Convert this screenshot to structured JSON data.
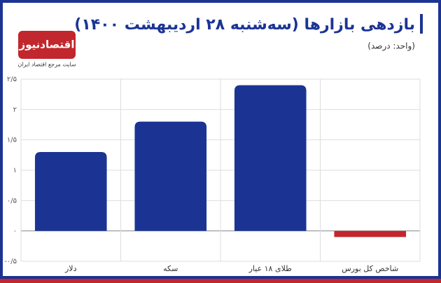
{
  "logo": {
    "name": "اقتصادنیوز",
    "tagline": "سایت مرجع اقتصاد ایران"
  },
  "chart_data": {
    "type": "bar",
    "title": "بازدهی بازارها (سه‌شنبه ۲۸ اردیبهشت ۱۴۰۰)",
    "subtitle": "(واحد: درصد)",
    "categories": [
      "دلار",
      "سکه",
      "طلای ۱۸ عیار",
      "شاخص کل بورس"
    ],
    "values": [
      1.3,
      1.8,
      2.4,
      -0.1
    ],
    "colors": [
      "#1b3494",
      "#1b3494",
      "#1b3494",
      "#c1272d"
    ],
    "ylim": [
      -0.5,
      2.5
    ],
    "yticks": [
      {
        "value": -0.5,
        "label": "-۰/۵"
      },
      {
        "value": 0,
        "label": "۰"
      },
      {
        "value": 0.5,
        "label": "۰/۵"
      },
      {
        "value": 1,
        "label": "۱"
      },
      {
        "value": 1.5,
        "label": "۱/۵"
      },
      {
        "value": 2,
        "label": "۲"
      },
      {
        "value": 2.5,
        "label": "۲/۵"
      }
    ],
    "grid": true
  }
}
